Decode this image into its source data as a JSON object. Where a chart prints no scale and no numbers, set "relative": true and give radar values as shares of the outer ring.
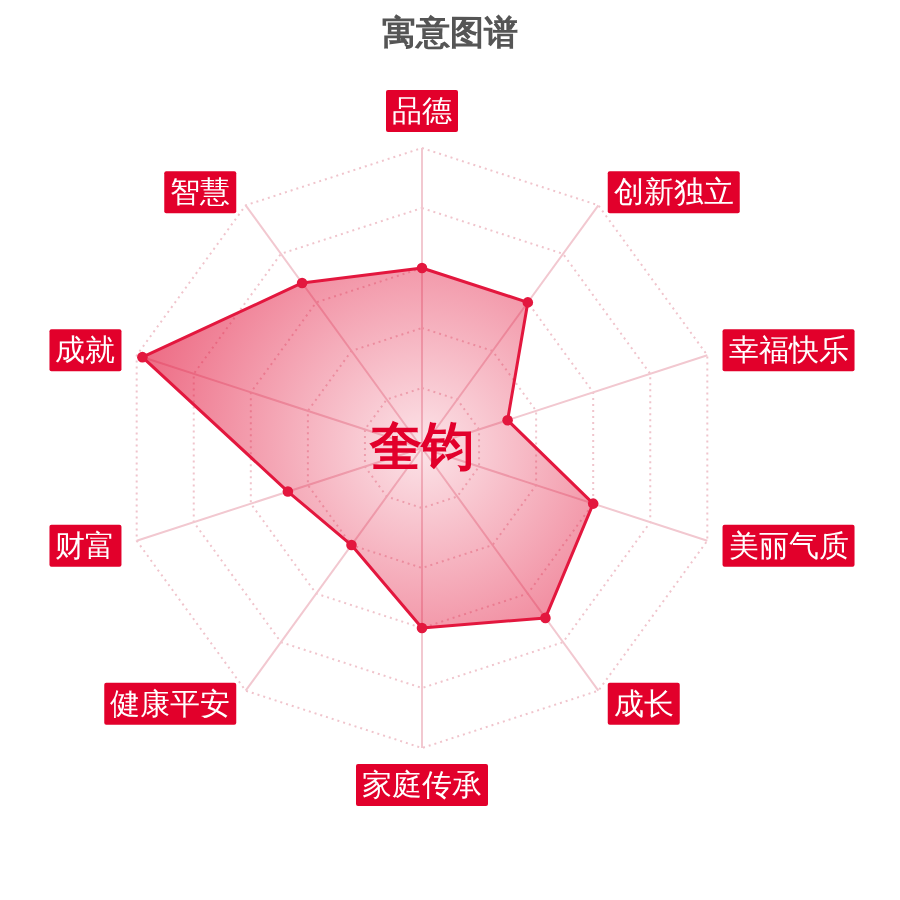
{
  "chart_data": {
    "type": "radar",
    "title": "寓意图谱",
    "categories": [
      "品德",
      "创新独立",
      "幸福快乐",
      "美丽气质",
      "成长",
      "家庭传承",
      "健康平安",
      "财富",
      "成就",
      "智慧"
    ],
    "relative": true,
    "grid": true,
    "marker": "circle",
    "series": [
      {
        "color": "#e3173e",
        "values": [
          0.6,
          0.6,
          0.3,
          0.6,
          0.7,
          0.6,
          0.4,
          0.47,
          0.98,
          0.68
        ]
      }
    ],
    "annotations": [
      "奎钧"
    ]
  }
}
